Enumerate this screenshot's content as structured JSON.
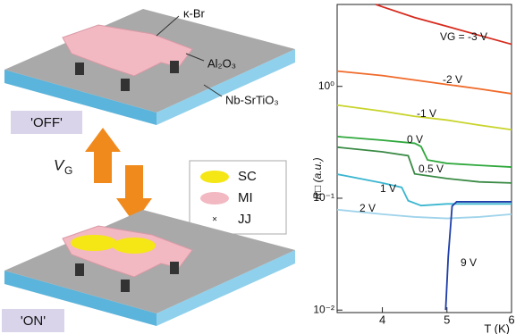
{
  "diagram": {
    "flake_label": "κ-Br",
    "dielectric_label": "Al₂O₃",
    "substrate_label": "Nb-SrTiO₃",
    "off_label": "'OFF'",
    "on_label": "'ON'",
    "gate_label": {
      "main": "V",
      "sub": "G"
    },
    "legend": [
      "SC",
      "MI",
      "JJ"
    ],
    "jj_symbol": "×"
  },
  "chart_data": {
    "type": "line",
    "xlabel": "T (K)",
    "ylabel": "R□ (a.u.)",
    "log_y": true,
    "xlim": [
      3.3,
      6
    ],
    "xticks": [
      4,
      5,
      6
    ],
    "ylim": [
      0.0095,
      5.4
    ],
    "yticks": [
      {
        "value": 0.01,
        "label": "10⁻²"
      },
      {
        "value": 0.1,
        "label": "10⁻¹"
      },
      {
        "value": 1,
        "label": "10⁰"
      }
    ],
    "series": [
      {
        "name": "VG = -3 V",
        "color": "#d62b1e",
        "x": [
          3.9,
          4,
          4.5,
          5,
          5.5,
          6
        ],
        "values": [
          5.4,
          5.15,
          4.13,
          3.44,
          2.86,
          2.38
        ]
      },
      {
        "name": "-2 V",
        "color": "#f06a2a",
        "x": [
          3.3,
          4,
          4.5,
          5,
          5.5,
          6
        ],
        "values": [
          1.37,
          1.25,
          1.14,
          1.04,
          0.95,
          0.86
        ]
      },
      {
        "name": "-1 V",
        "color": "#c8d42a",
        "x": [
          3.3,
          4,
          4.5,
          5,
          5.5,
          6
        ],
        "values": [
          0.68,
          0.6,
          0.54,
          0.5,
          0.45,
          0.41
        ]
      },
      {
        "name": "0 V",
        "color": "#2fa83c",
        "x": [
          3.3,
          4,
          4.5,
          4.6,
          4.7,
          5,
          5.5,
          6
        ],
        "values": [
          0.356,
          0.33,
          0.31,
          0.29,
          0.22,
          0.205,
          0.197,
          0.19
        ]
      },
      {
        "name": "0.5 V",
        "color": "#3a8a45",
        "x": [
          3.3,
          4,
          4.4,
          4.5,
          5,
          5.5,
          6
        ],
        "values": [
          0.286,
          0.26,
          0.24,
          0.165,
          0.15,
          0.14,
          0.137
        ]
      },
      {
        "name": "1 V",
        "color": "#3bb6d0",
        "x": [
          3.3,
          4,
          4.3,
          4.4,
          4.6,
          5,
          5.5,
          6
        ],
        "values": [
          0.164,
          0.137,
          0.125,
          0.095,
          0.086,
          0.089,
          0.089,
          0.089
        ]
      },
      {
        "name": "2 V",
        "color": "#9fd3ea",
        "x": [
          3.3,
          4,
          4.5,
          5,
          5.5,
          6
        ],
        "values": [
          0.079,
          0.072,
          0.068,
          0.066,
          0.068,
          0.072
        ]
      },
      {
        "name": "9 V",
        "color": "#1f3ea8",
        "x": [
          4.98,
          5.02,
          5.08,
          5.15,
          6
        ],
        "values": [
          0.01,
          0.03,
          0.085,
          0.093,
          0.093
        ]
      }
    ]
  }
}
